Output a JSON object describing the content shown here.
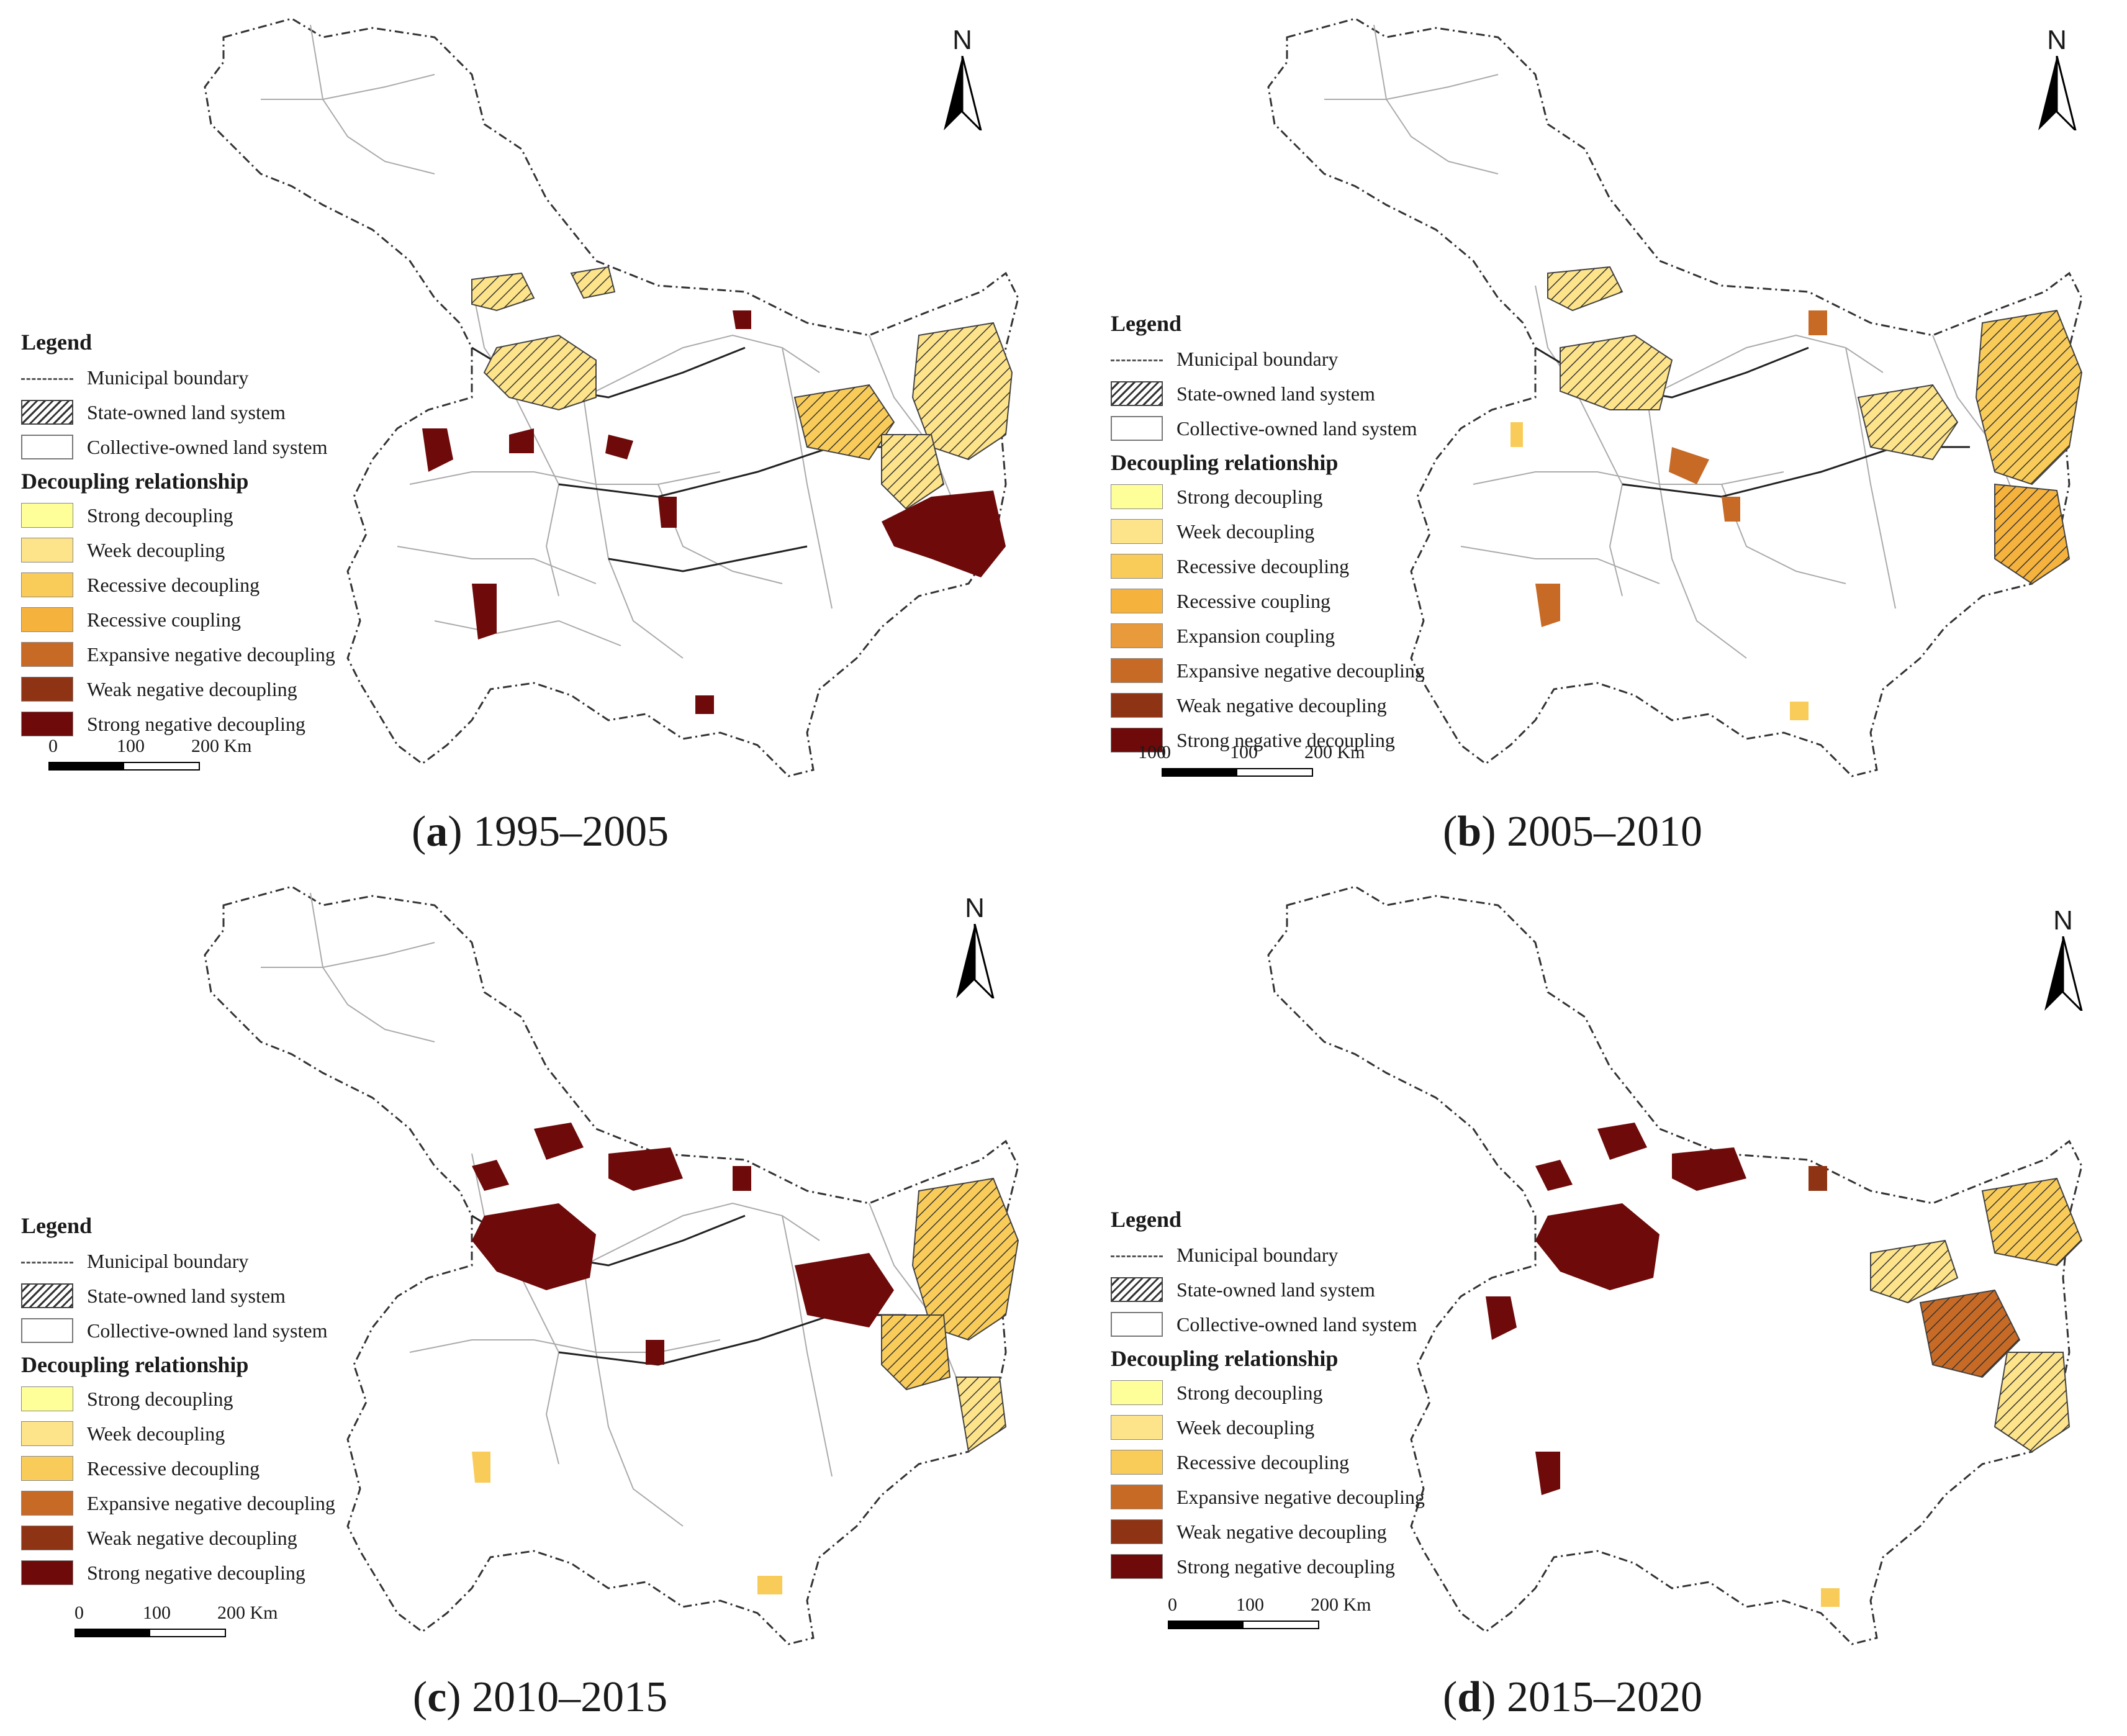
{
  "north_label": "N",
  "legend": {
    "title": "Legend",
    "municipal_boundary": "Municipal boundary",
    "state_owned": "State-owned land system",
    "collective_owned": "Collective-owned land system",
    "decoupling_title": "Decoupling relationship"
  },
  "scale": {
    "l0": "0",
    "l1": "100",
    "l2": "200 Km"
  },
  "colors": {
    "Strong decoupling": "#ffff99",
    "Week decoupling": "#fde38a",
    "Recessive decoupling": "#f9cc5a",
    "Recessive coupling": "#f5b23d",
    "Expansion coupling": "#e99a3a",
    "Expansive negative decoupling": "#c76a26",
    "Weak negative decoupling": "#8e3414",
    "Strong negative decoupling": "#6e0a0a"
  },
  "panels": [
    {
      "letter": "a",
      "period": "1995–2005",
      "classes": [
        "Strong decoupling",
        "Week decoupling",
        "Recessive decoupling",
        "Recessive coupling",
        "Expansive negative decoupling",
        "Weak negative decoupling",
        "Strong negative decoupling"
      ]
    },
    {
      "letter": "b",
      "period": "2005–2010",
      "classes": [
        "Strong decoupling",
        "Week decoupling",
        "Recessive decoupling",
        "Recessive coupling",
        "Expansion coupling",
        "Expansive negative decoupling",
        "Weak negative decoupling",
        "Strong negative decoupling"
      ]
    },
    {
      "letter": "c",
      "period": "2010–2015",
      "classes": [
        "Strong decoupling",
        "Week decoupling",
        "Recessive decoupling",
        "Expansive negative decoupling",
        "Weak negative decoupling",
        "Strong negative decoupling"
      ]
    },
    {
      "letter": "d",
      "period": "2015–2020",
      "classes": [
        "Strong decoupling",
        "Week decoupling",
        "Recessive decoupling",
        "Expansive negative decoupling",
        "Weak negative decoupling",
        "Strong negative decoupling"
      ]
    }
  ]
}
